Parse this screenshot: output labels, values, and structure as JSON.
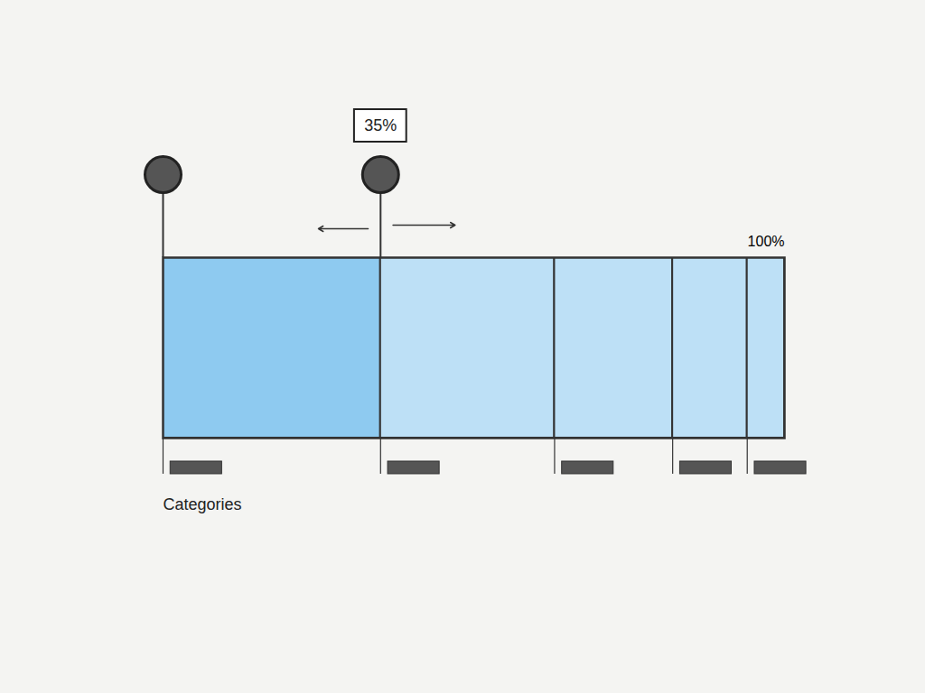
{
  "chart_data": {
    "type": "bar",
    "orientation": "horizontal",
    "stacked": true,
    "categories": [
      null,
      null,
      null,
      null,
      null
    ],
    "values": [
      35,
      28,
      19,
      12,
      6
    ],
    "value_labels": [
      "35%",
      null,
      null,
      null,
      null
    ],
    "data_labels": true,
    "colors": [
      "#8ecaf0",
      "#bde0f6",
      "#bde0f6",
      "#bde0f6",
      "#bde0f6"
    ],
    "xlabel": "Categories",
    "xlim": [
      0,
      100
    ],
    "xticks": [
      {
        "value": 100,
        "label": "100%"
      }
    ],
    "tick_labels": "x"
  }
}
